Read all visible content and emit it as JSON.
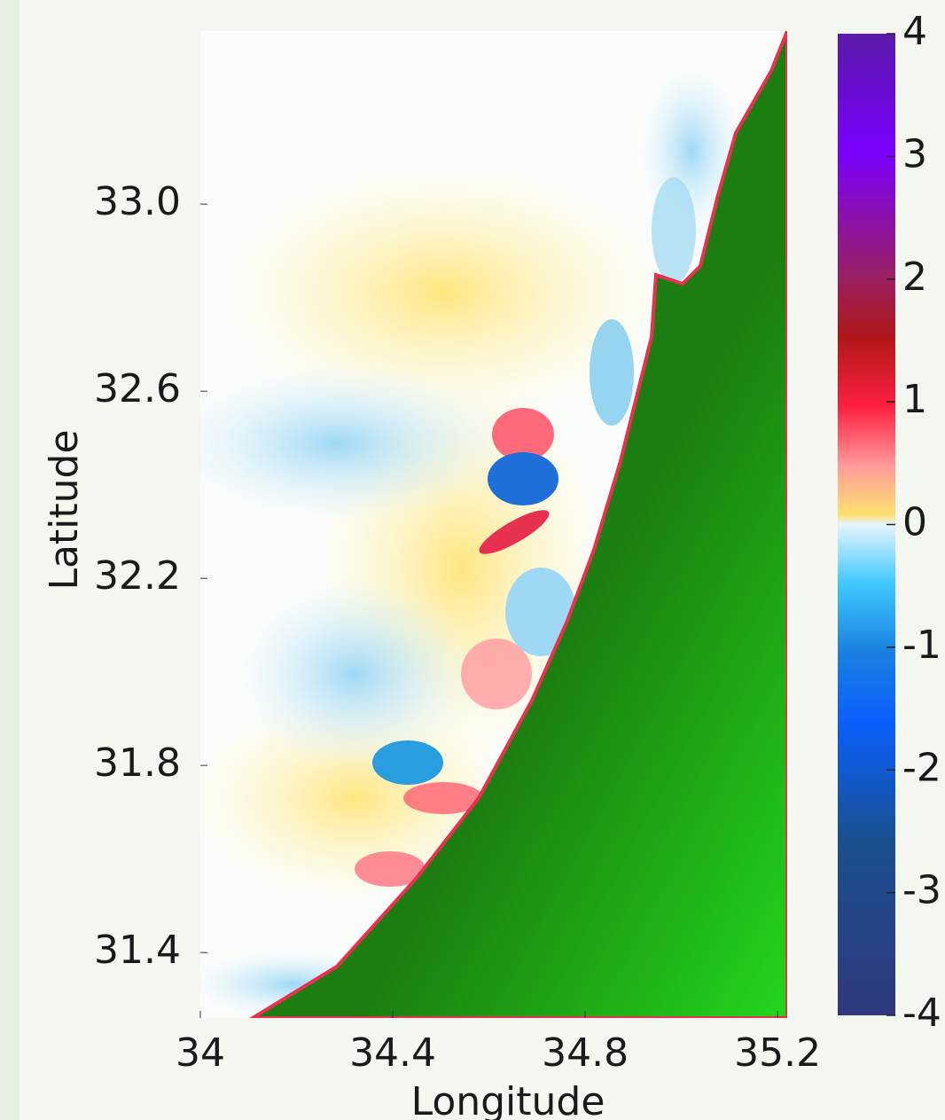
{
  "chart_data": {
    "type": "heatmap",
    "x_label": "Longitude",
    "y_label": "Latitude",
    "xlim": [
      34,
      35.22
    ],
    "ylim": [
      31.26,
      33.37
    ],
    "xticks": [
      34,
      34.4,
      34.8,
      35.2
    ],
    "yticks": [
      31.4,
      31.8,
      32.2,
      32.6,
      {
        "value": 33,
        "label": "33.0"
      }
    ],
    "colorbar": {
      "lim": [
        -4,
        4
      ],
      "ticks": [
        -4,
        -3,
        -2,
        -1,
        0,
        1,
        2,
        3,
        4
      ]
    }
  }
}
